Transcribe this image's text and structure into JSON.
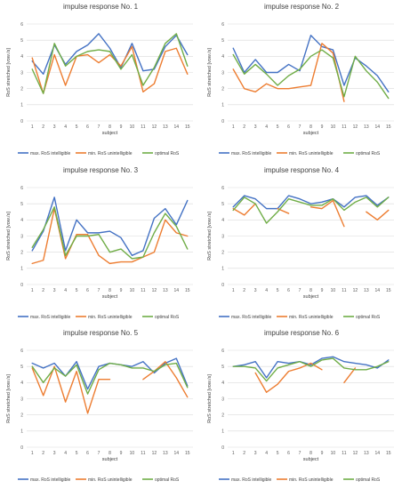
{
  "colors": {
    "max": "#4472C4",
    "min": "#ED7D31",
    "optimal": "#70AD47",
    "grid": "#D9D9D9",
    "text": "#404040"
  },
  "chart_data": [
    {
      "type": "line",
      "title": "impulse response No. 1",
      "xlabel": "subject",
      "ylabel": "RoS stretched [vow./s]",
      "x": [
        1,
        2,
        3,
        4,
        5,
        6,
        7,
        8,
        9,
        10,
        11,
        12,
        13,
        14,
        15
      ],
      "xticks": [
        "1",
        "2",
        "3",
        "4",
        "5",
        "6",
        "7",
        "8",
        "9",
        "10",
        "11",
        "12",
        "13",
        "14",
        "15"
      ],
      "yticks": [
        "0",
        "1",
        "2",
        "3",
        "4",
        "5",
        "6"
      ],
      "ylim": [
        0,
        6
      ],
      "grid": true,
      "legend": "bottom",
      "series": [
        {
          "name": "max. RoS intelligible",
          "values": [
            3.7,
            2.9,
            4.7,
            3.5,
            4.3,
            4.7,
            5.4,
            4.5,
            3.3,
            4.8,
            3.1,
            3.2,
            4.6,
            5.3,
            4.1
          ]
        },
        {
          "name": "min. RoS unintelligible",
          "values": [
            3.9,
            1.7,
            4.1,
            2.2,
            4.0,
            4.1,
            3.6,
            4.1,
            3.4,
            4.6,
            1.8,
            2.3,
            4.3,
            4.5,
            2.9
          ]
        },
        {
          "name": "optimal RoS",
          "values": [
            3.2,
            1.7,
            4.8,
            3.4,
            4.0,
            4.3,
            4.4,
            4.3,
            3.2,
            4.1,
            2.2,
            3.3,
            4.8,
            5.4,
            3.4
          ]
        }
      ]
    },
    {
      "type": "line",
      "title": "impulse response No. 2",
      "xlabel": "subject",
      "ylabel": "RoS stretched [vow./s]",
      "x": [
        1,
        2,
        3,
        4,
        5,
        6,
        7,
        8,
        9,
        10,
        11,
        12,
        13,
        14,
        15
      ],
      "xticks": [
        "1",
        "2",
        "3",
        "4",
        "5",
        "6",
        "7",
        "8",
        "9",
        "10",
        "11",
        "12",
        "13",
        "14",
        "15"
      ],
      "yticks": [
        "0",
        "1",
        "2",
        "3",
        "4",
        "5",
        "6"
      ],
      "ylim": [
        0,
        6
      ],
      "grid": true,
      "legend": "bottom",
      "series": [
        {
          "name": "max. RoS intelligible",
          "values": [
            4.5,
            3.0,
            3.8,
            3.0,
            3.0,
            3.5,
            3.1,
            5.3,
            4.6,
            4.4,
            2.2,
            3.9,
            3.4,
            2.8,
            1.8
          ]
        },
        {
          "name": "min. RoS unintelligible",
          "values": [
            3.2,
            2.0,
            1.8,
            2.3,
            2.0,
            2.0,
            2.1,
            2.2,
            4.8,
            4.2,
            1.2,
            null,
            null,
            null,
            null
          ]
        },
        {
          "name": "optimal RoS",
          "values": [
            4.1,
            2.9,
            3.5,
            2.9,
            2.2,
            2.8,
            3.2,
            4.0,
            4.4,
            3.9,
            1.5,
            4.0,
            3.1,
            2.4,
            1.4
          ]
        }
      ]
    },
    {
      "type": "line",
      "title": "impulse response No. 3",
      "xlabel": "subject",
      "ylabel": "RoS stretched [vow./s]",
      "x": [
        1,
        2,
        3,
        4,
        5,
        6,
        7,
        8,
        9,
        10,
        11,
        12,
        13,
        14,
        15
      ],
      "xticks": [
        "1",
        "2",
        "3",
        "4",
        "5",
        "6",
        "7",
        "8",
        "9",
        "10",
        "11",
        "12",
        "13",
        "14",
        "15"
      ],
      "yticks": [
        "0",
        "1",
        "2",
        "3",
        "4",
        "5",
        "6"
      ],
      "ylim": [
        0,
        6
      ],
      "grid": true,
      "legend": "bottom",
      "series": [
        {
          "name": "max. RoS intelligible",
          "values": [
            2.1,
            3.3,
            5.4,
            2.1,
            4.0,
            3.2,
            3.2,
            3.3,
            2.9,
            1.8,
            2.1,
            4.1,
            4.7,
            3.7,
            5.2
          ]
        },
        {
          "name": "min. RoS unintelligible",
          "values": [
            1.3,
            1.5,
            4.7,
            1.6,
            3.1,
            3.1,
            1.8,
            1.3,
            1.4,
            1.4,
            1.7,
            2.0,
            4.0,
            3.2,
            3.0
          ]
        },
        {
          "name": "optimal RoS",
          "values": [
            2.3,
            3.4,
            4.8,
            1.8,
            3.0,
            3.0,
            3.1,
            2.0,
            2.2,
            1.6,
            1.7,
            3.2,
            4.4,
            3.6,
            2.2
          ]
        }
      ]
    },
    {
      "type": "line",
      "title": "impulse response No. 4",
      "xlabel": "subject",
      "ylabel": "RoS stretched [vow./s]",
      "x": [
        1,
        2,
        3,
        4,
        5,
        6,
        7,
        8,
        9,
        10,
        11,
        12,
        13,
        14,
        15
      ],
      "xticks": [
        "1",
        "2",
        "3",
        "4",
        "5",
        "6",
        "7",
        "8",
        "9",
        "10",
        "11",
        "12",
        "13",
        "14",
        "15"
      ],
      "yticks": [
        "0",
        "1",
        "2",
        "3",
        "4",
        "5",
        "6"
      ],
      "ylim": [
        0,
        6
      ],
      "grid": true,
      "legend": "bottom",
      "series": [
        {
          "name": "max. RoS intelligible",
          "values": [
            4.8,
            5.5,
            5.3,
            4.7,
            4.7,
            5.5,
            5.3,
            5.0,
            5.1,
            5.3,
            4.8,
            5.4,
            5.5,
            4.9,
            5.4
          ]
        },
        {
          "name": "min. RoS unintelligible",
          "values": [
            4.7,
            4.3,
            5.0,
            null,
            4.7,
            4.4,
            null,
            4.8,
            4.7,
            5.2,
            3.6,
            null,
            4.5,
            4.0,
            4.6
          ]
        },
        {
          "name": "optimal RoS",
          "values": [
            4.6,
            5.4,
            5.0,
            3.8,
            4.5,
            5.3,
            5.1,
            4.9,
            4.9,
            5.3,
            4.6,
            5.1,
            5.4,
            4.8,
            5.4
          ]
        }
      ]
    },
    {
      "type": "line",
      "title": "impulse response No. 5",
      "xlabel": "subject",
      "ylabel": "RoS stretched [vow./s]",
      "x": [
        1,
        2,
        3,
        4,
        5,
        6,
        7,
        8,
        9,
        10,
        11,
        12,
        13,
        14,
        15
      ],
      "xticks": [
        "1",
        "2",
        "3",
        "4",
        "5",
        "6",
        "7",
        "8",
        "9",
        "10",
        "11",
        "12",
        "13",
        "14",
        "15"
      ],
      "yticks": [
        "0",
        "1",
        "2",
        "3",
        "4",
        "5",
        "6"
      ],
      "ylim": [
        0,
        6
      ],
      "grid": true,
      "legend": "bottom",
      "series": [
        {
          "name": "max. RoS intelligible",
          "values": [
            5.2,
            4.9,
            5.2,
            4.4,
            5.3,
            3.6,
            5.0,
            5.2,
            5.1,
            5.0,
            5.3,
            4.6,
            5.2,
            5.5,
            3.8
          ]
        },
        {
          "name": "min. RoS unintelligible",
          "values": [
            4.9,
            3.2,
            5.0,
            2.8,
            4.7,
            2.1,
            4.2,
            4.2,
            null,
            null,
            4.2,
            4.7,
            5.3,
            4.3,
            3.1
          ]
        },
        {
          "name": "optimal RoS",
          "values": [
            5.0,
            4.0,
            4.9,
            4.4,
            5.1,
            3.3,
            4.8,
            5.2,
            5.1,
            4.9,
            4.9,
            4.7,
            5.1,
            5.2,
            3.7
          ]
        }
      ]
    },
    {
      "type": "line",
      "title": "impulse response No. 6",
      "xlabel": "subject",
      "ylabel": "RoS stretched [vow./s]",
      "x": [
        1,
        2,
        3,
        4,
        5,
        6,
        7,
        8,
        9,
        10,
        11,
        12,
        13,
        14,
        15
      ],
      "xticks": [
        "1",
        "2",
        "3",
        "4",
        "5",
        "6",
        "7",
        "8",
        "9",
        "10",
        "11",
        "12",
        "13",
        "14",
        "15"
      ],
      "yticks": [
        "0",
        "1",
        "2",
        "3",
        "4",
        "5",
        "6"
      ],
      "ylim": [
        0,
        6
      ],
      "grid": true,
      "legend": "bottom",
      "series": [
        {
          "name": "max. RoS intelligible",
          "values": [
            5.0,
            5.1,
            5.3,
            4.3,
            5.3,
            5.2,
            5.3,
            5.1,
            5.5,
            5.6,
            5.3,
            5.2,
            5.1,
            4.9,
            5.4
          ]
        },
        {
          "name": "min. RoS unintelligible",
          "values": [
            null,
            null,
            4.6,
            3.4,
            3.9,
            4.7,
            4.9,
            5.2,
            4.8,
            null,
            4.0,
            4.9,
            null,
            null,
            null
          ]
        },
        {
          "name": "optimal RoS",
          "values": [
            5.0,
            5.0,
            4.9,
            4.1,
            4.9,
            5.1,
            5.3,
            5.0,
            5.4,
            5.5,
            4.9,
            4.8,
            4.8,
            5.0,
            5.3
          ]
        }
      ]
    }
  ]
}
